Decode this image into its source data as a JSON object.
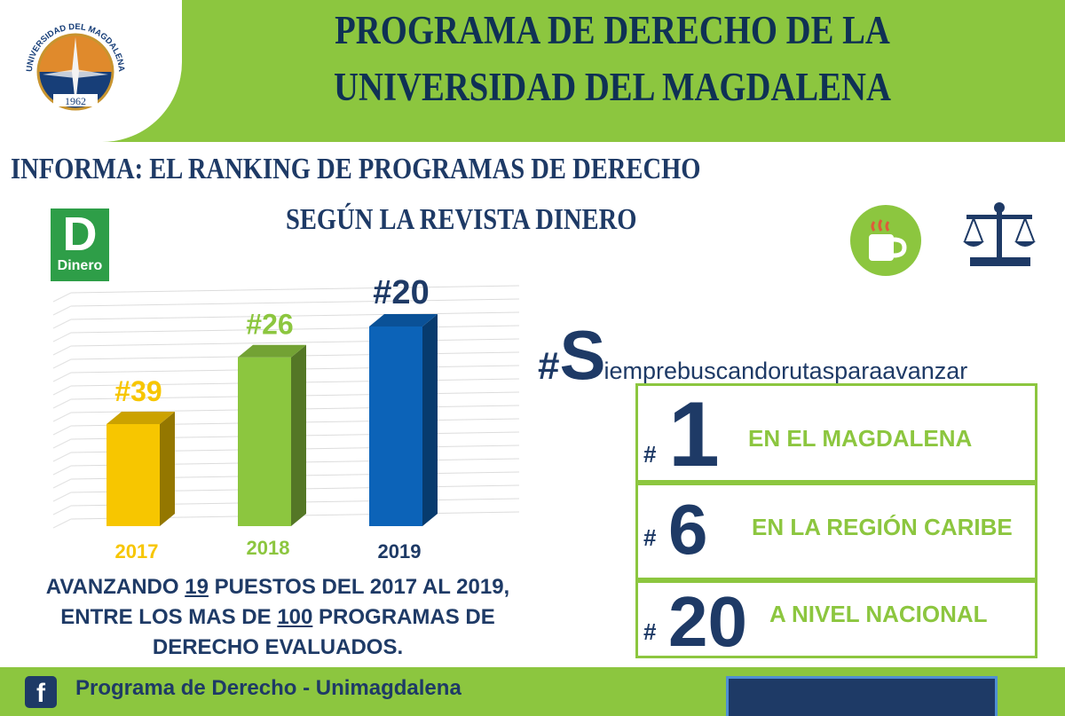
{
  "header": {
    "title_line1": "PROGRAMA DE DERECHO DE LA",
    "title_line2": "UNIVERSIDAD DEL MAGDALENA",
    "logo_text": "UNIVERSIDAD DEL MAGDALENA",
    "logo_year": "1962"
  },
  "subtitle": {
    "line1": "INFORMA: EL RANKING DE PROGRAMAS DE DERECHO",
    "line2": "SEGÚN LA REVISTA DINERO"
  },
  "dinero_logo": {
    "letter": "D",
    "word": "Dinero",
    "color": "#2e9e48"
  },
  "chart_data": {
    "type": "bar",
    "categories": [
      "2017",
      "2018",
      "2019"
    ],
    "values": [
      39,
      26,
      20
    ],
    "data_labels": [
      "#39",
      "#26",
      "#20"
    ],
    "colors": [
      "#f7c600",
      "#8cc63f",
      "#0c63b8"
    ],
    "title": "",
    "xlabel": "",
    "ylabel": ""
  },
  "hashtag": {
    "prefix": "#",
    "initial": "S",
    "rest": "iemprebuscandorutasparaavanzar"
  },
  "rankings": [
    {
      "hash": "#",
      "number": "1",
      "label": "EN EL MAGDALENA"
    },
    {
      "hash": "#",
      "number": "6",
      "label": "EN LA REGIÓN CARIBE"
    },
    {
      "hash": "#",
      "number": "20",
      "label": "A NIVEL NACIONAL"
    }
  ],
  "advance": {
    "l1_a": "AVANZANDO ",
    "l1_num": "19",
    "l1_b": " PUESTOS DEL 2017 AL 2019,",
    "l2_a": "ENTRE LOS MAS DE ",
    "l2_num": "100",
    "l2_b": " PROGRAMAS DE",
    "l3": "DERECHO  EVALUADOS."
  },
  "footer": {
    "text": "Programa de Derecho - Unimagdalena",
    "icon": "facebook-icon"
  },
  "colors": {
    "green": "#8cc63f",
    "navy": "#1e3a66",
    "title_navy": "#0f3154"
  },
  "icons": [
    "coffee-cup-icon",
    "scales-of-justice-icon",
    "facebook-icon"
  ]
}
